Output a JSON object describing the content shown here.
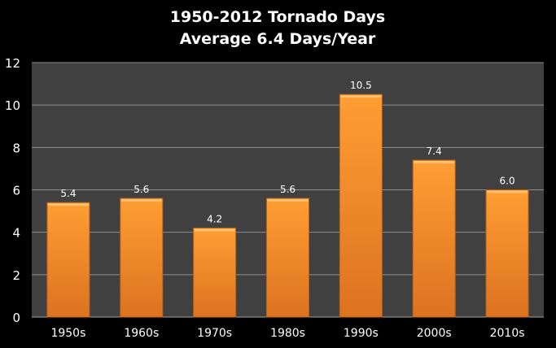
{
  "chart_data": {
    "type": "bar",
    "title": "1950-2012 Tornado Days",
    "subtitle": "Average 6.4 Days/Year",
    "categories": [
      "1950s",
      "1960s",
      "1970s",
      "1980s",
      "1990s",
      "2000s",
      "2010s"
    ],
    "values": [
      5.4,
      5.6,
      4.2,
      5.6,
      10.5,
      7.4,
      6.0
    ],
    "data_labels": [
      "5.4",
      "5.6",
      "4.2",
      "5.6",
      "10.5",
      "7.4",
      "6.0"
    ],
    "xlabel": "",
    "ylabel": "",
    "ylim": [
      0,
      12
    ],
    "yticks": [
      0,
      2,
      4,
      6,
      8,
      10,
      12
    ],
    "grid": true,
    "legend": "none",
    "colors": {
      "background": "#000000",
      "plot_area": "#404040",
      "bar": "#F7962F",
      "gridline": "#8C8C8C",
      "text": "#FFFFFF"
    }
  }
}
